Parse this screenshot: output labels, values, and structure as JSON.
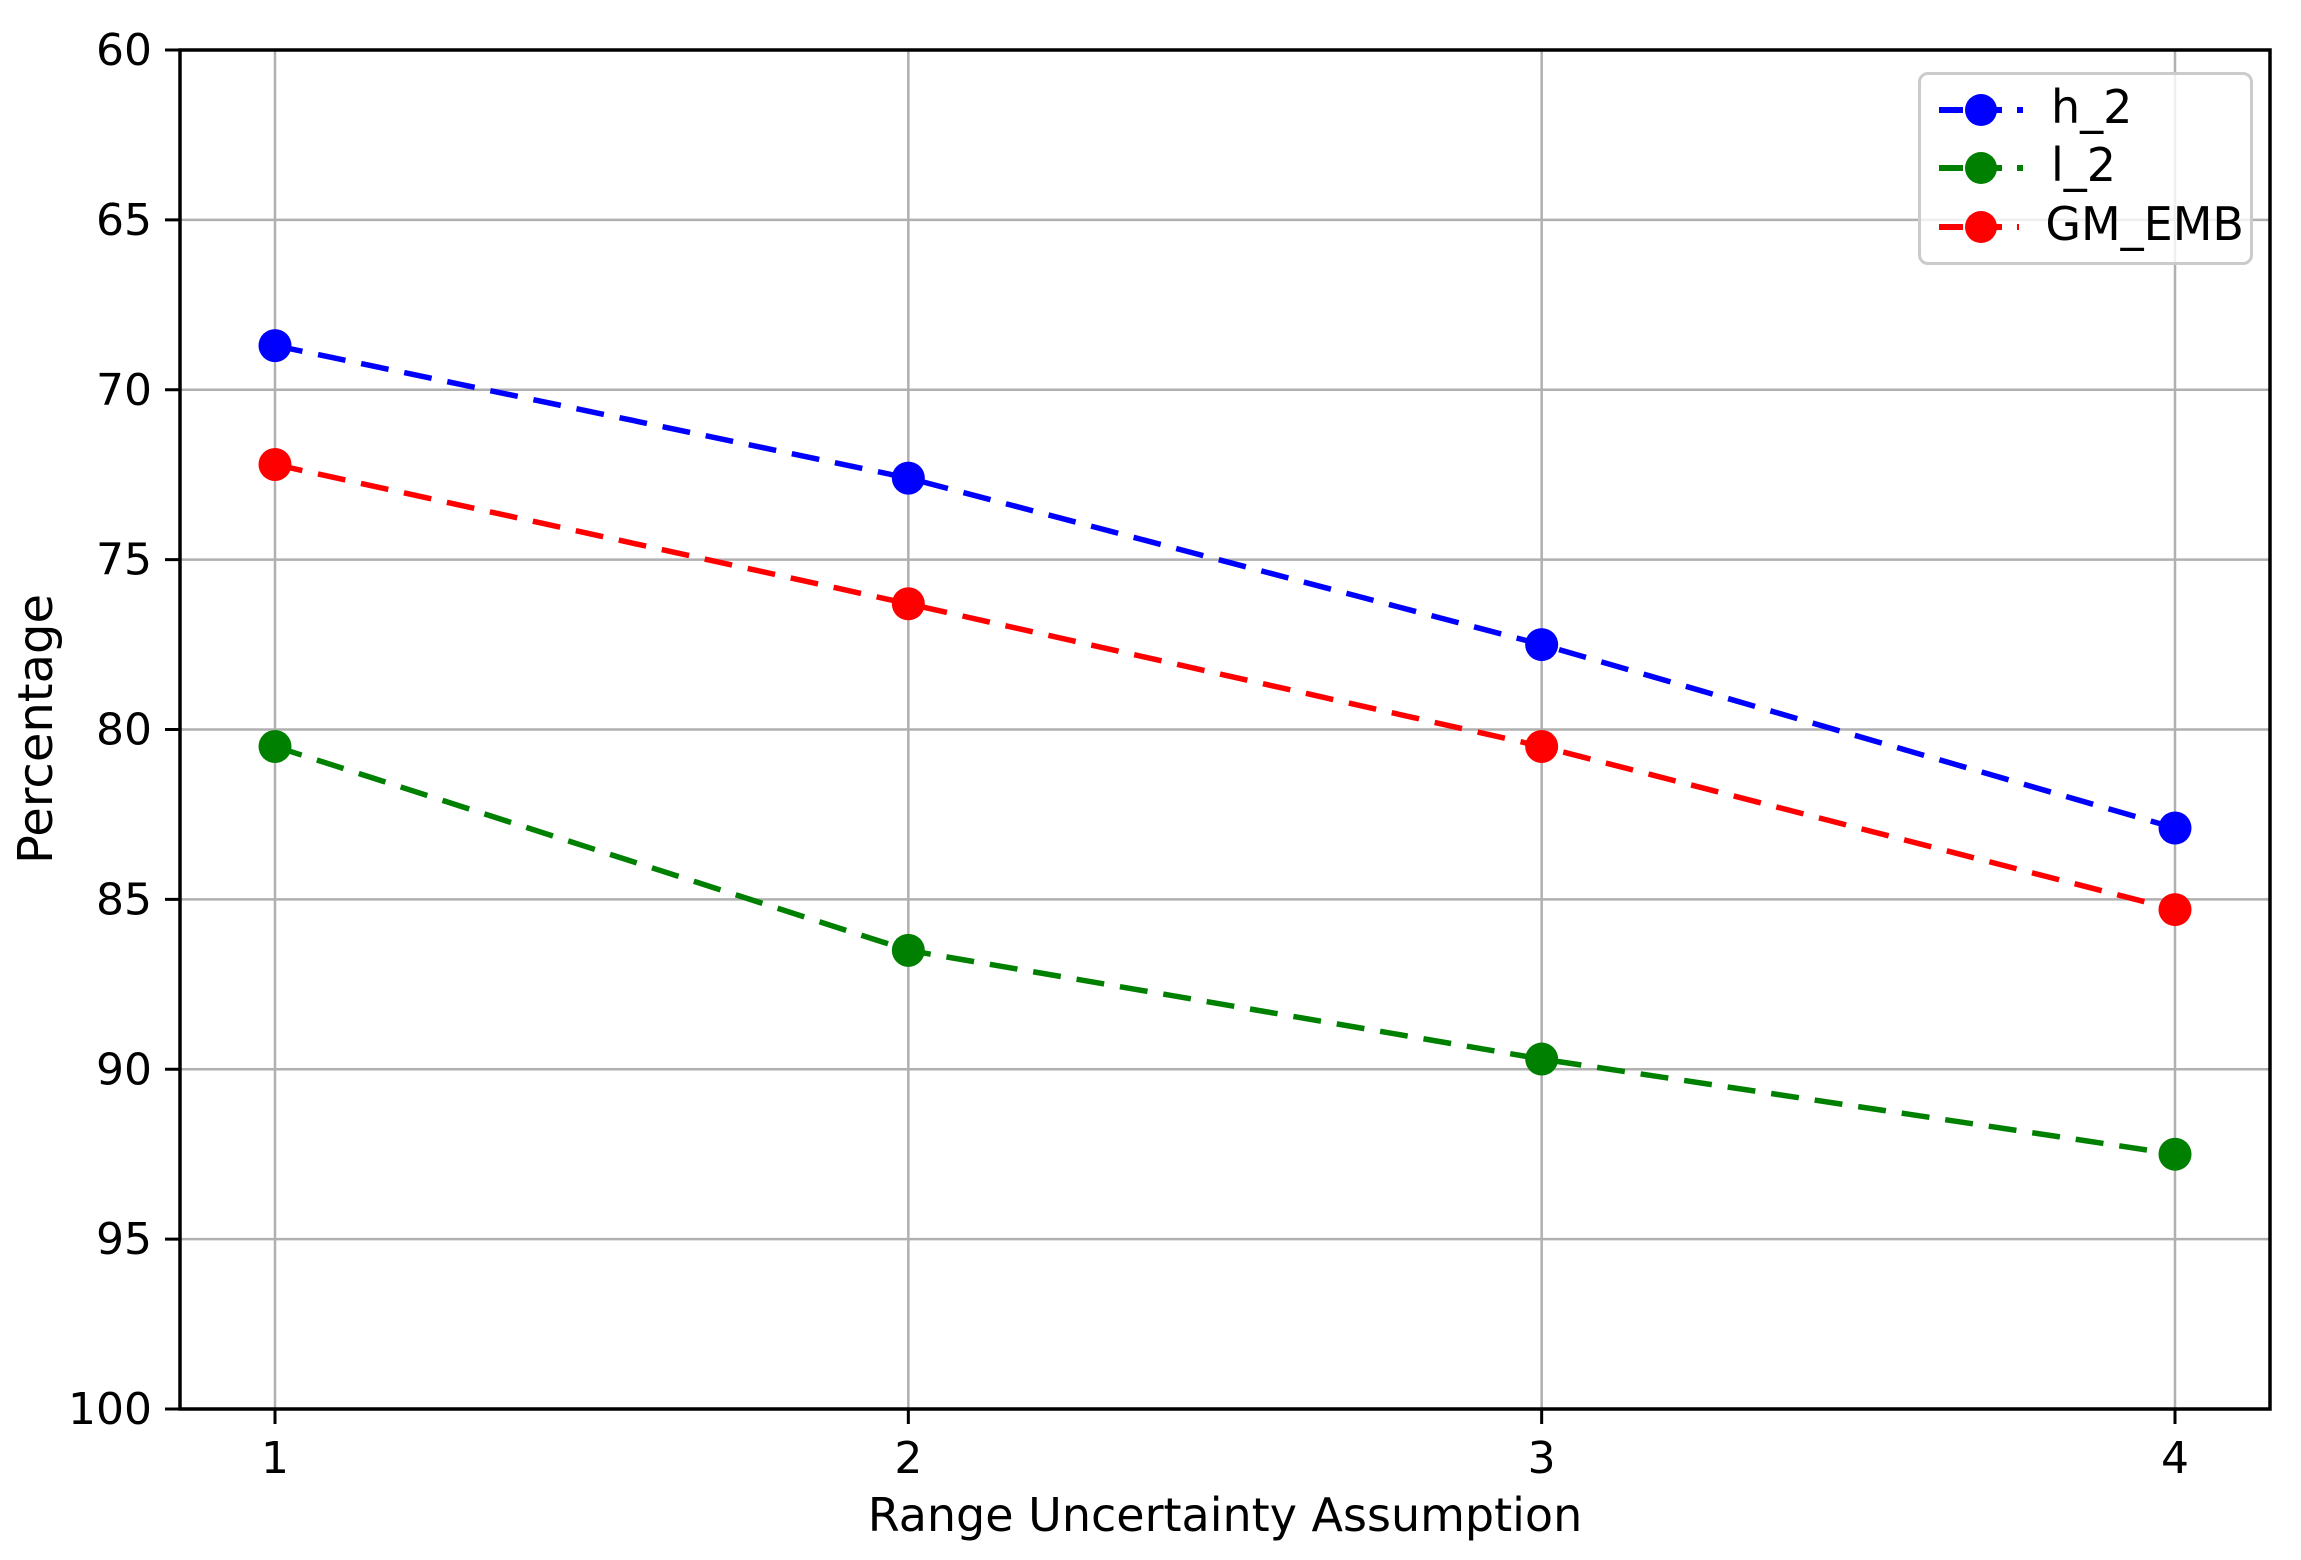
{
  "chart_data": {
    "type": "line",
    "title": "",
    "xlabel": "Range Uncertainty Assumption",
    "ylabel": "Percentage",
    "x": [
      1,
      2,
      3,
      4
    ],
    "xticks": [
      1,
      2,
      3,
      4
    ],
    "xtick_labels": [
      "1",
      "2",
      "3",
      "4"
    ],
    "yticks": [
      60,
      65,
      70,
      75,
      80,
      85,
      90,
      95,
      100
    ],
    "ytick_labels": [
      "60",
      "65",
      "70",
      "75",
      "80",
      "85",
      "90",
      "95",
      "100"
    ],
    "xlim": [
      0.85,
      4.15
    ],
    "ylim": [
      60,
      100
    ],
    "y_axis_inverted": true,
    "grid": true,
    "grid_color": "#b0b0b0",
    "axis_color": "#000000",
    "background_color": "#ffffff",
    "legend_position": "upper right",
    "series": [
      {
        "name": "h_2",
        "color": "#0000ff",
        "linestyle": "dashed",
        "marker": "circle",
        "values": [
          68.7,
          72.6,
          77.5,
          82.9
        ]
      },
      {
        "name": "l_2",
        "color": "#008000",
        "linestyle": "dashed",
        "marker": "circle",
        "values": [
          80.5,
          86.5,
          89.7,
          92.5
        ]
      },
      {
        "name": "GM_EMB",
        "color": "#ff0000",
        "linestyle": "dashed",
        "marker": "circle",
        "values": [
          72.2,
          76.3,
          80.5,
          85.3
        ]
      }
    ]
  }
}
